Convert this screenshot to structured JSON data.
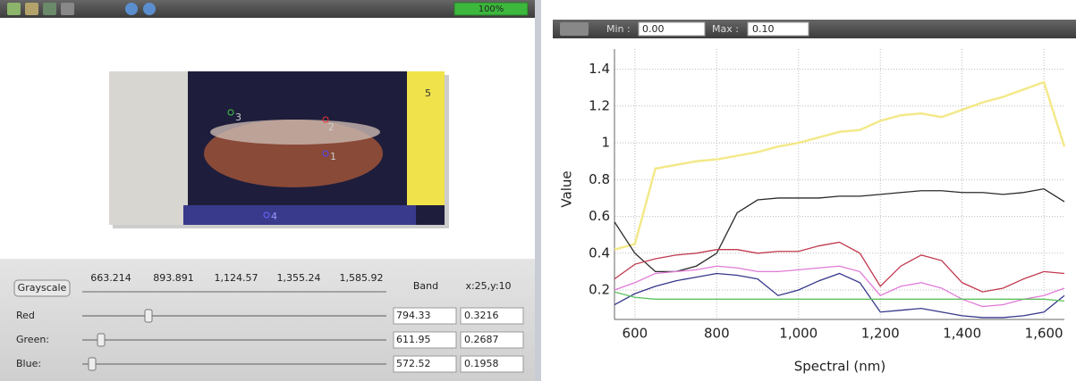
{
  "toolbar": {
    "progress": "100%"
  },
  "image": {
    "markers": [
      "1",
      "2",
      "3",
      "4",
      "5"
    ]
  },
  "slider_panel": {
    "button": "Grayscale",
    "scale": [
      "663.214",
      "893.891",
      "1,124.57",
      "1,355.24",
      "1,585.92"
    ],
    "band_header": "Band",
    "position": "x:25,y:10",
    "rows": [
      {
        "label": "Red",
        "band": "794.33",
        "value": "0.3216"
      },
      {
        "label": "Green:",
        "band": "611.95",
        "value": "0.2687"
      },
      {
        "label": "Blue:",
        "band": "572.52",
        "value": "0.1958"
      }
    ]
  },
  "chart_toolbar": {
    "min_label": "Min :",
    "min_value": "0.00",
    "max_label": "Max :",
    "max_value": "0.10"
  },
  "chart_data": {
    "type": "line",
    "xlabel": "Spectral (nm)",
    "ylabel": "Value",
    "x": [
      550,
      600,
      650,
      700,
      750,
      800,
      850,
      900,
      950,
      1000,
      1050,
      1100,
      1150,
      1200,
      1250,
      1300,
      1350,
      1400,
      1450,
      1500,
      1550,
      1600,
      1650
    ],
    "series": [
      {
        "color": "#f3e98a",
        "values": [
          0.42,
          0.45,
          0.86,
          0.88,
          0.9,
          0.91,
          0.93,
          0.95,
          0.98,
          1.0,
          1.03,
          1.06,
          1.07,
          1.12,
          1.15,
          1.16,
          1.14,
          1.18,
          1.22,
          1.25,
          1.29,
          1.33,
          0.98
        ]
      },
      {
        "color": "#2a2a2a",
        "values": [
          0.57,
          0.4,
          0.3,
          0.3,
          0.33,
          0.4,
          0.62,
          0.69,
          0.7,
          0.7,
          0.7,
          0.71,
          0.71,
          0.72,
          0.73,
          0.74,
          0.74,
          0.73,
          0.73,
          0.72,
          0.73,
          0.75,
          0.68
        ]
      },
      {
        "color": "#c0394f",
        "values": [
          0.26,
          0.34,
          0.37,
          0.39,
          0.4,
          0.42,
          0.42,
          0.4,
          0.41,
          0.41,
          0.44,
          0.46,
          0.4,
          0.22,
          0.33,
          0.39,
          0.36,
          0.24,
          0.19,
          0.21,
          0.26,
          0.3,
          0.29
        ]
      },
      {
        "color": "#e07ad8",
        "values": [
          0.2,
          0.24,
          0.29,
          0.3,
          0.31,
          0.33,
          0.32,
          0.3,
          0.3,
          0.31,
          0.32,
          0.33,
          0.3,
          0.17,
          0.22,
          0.24,
          0.21,
          0.15,
          0.11,
          0.12,
          0.15,
          0.17,
          0.21
        ]
      },
      {
        "color": "#34378a",
        "values": [
          0.12,
          0.18,
          0.22,
          0.25,
          0.27,
          0.29,
          0.28,
          0.26,
          0.17,
          0.2,
          0.25,
          0.29,
          0.24,
          0.08,
          0.09,
          0.1,
          0.08,
          0.06,
          0.05,
          0.05,
          0.06,
          0.08,
          0.17
        ]
      },
      {
        "color": "#5cc35c",
        "values": [
          0.19,
          0.16,
          0.15,
          0.15,
          0.15,
          0.15,
          0.15,
          0.15,
          0.15,
          0.15,
          0.15,
          0.15,
          0.15,
          0.15,
          0.15,
          0.15,
          0.15,
          0.15,
          0.15,
          0.15,
          0.15,
          0.15,
          0.14
        ]
      }
    ],
    "xlim": [
      550,
      1650
    ],
    "ylim": [
      0.04,
      1.51
    ],
    "xticks": [
      600,
      800,
      {
        "value": 1000,
        "label": "1,000"
      },
      {
        "value": 1200,
        "label": "1,200"
      },
      {
        "value": 1400,
        "label": "1,400"
      },
      {
        "value": 1600,
        "label": "1,600"
      }
    ],
    "yticks": [
      0.2,
      0.4,
      0.6,
      0.8,
      1,
      1.2,
      1.4
    ],
    "grid": true
  }
}
